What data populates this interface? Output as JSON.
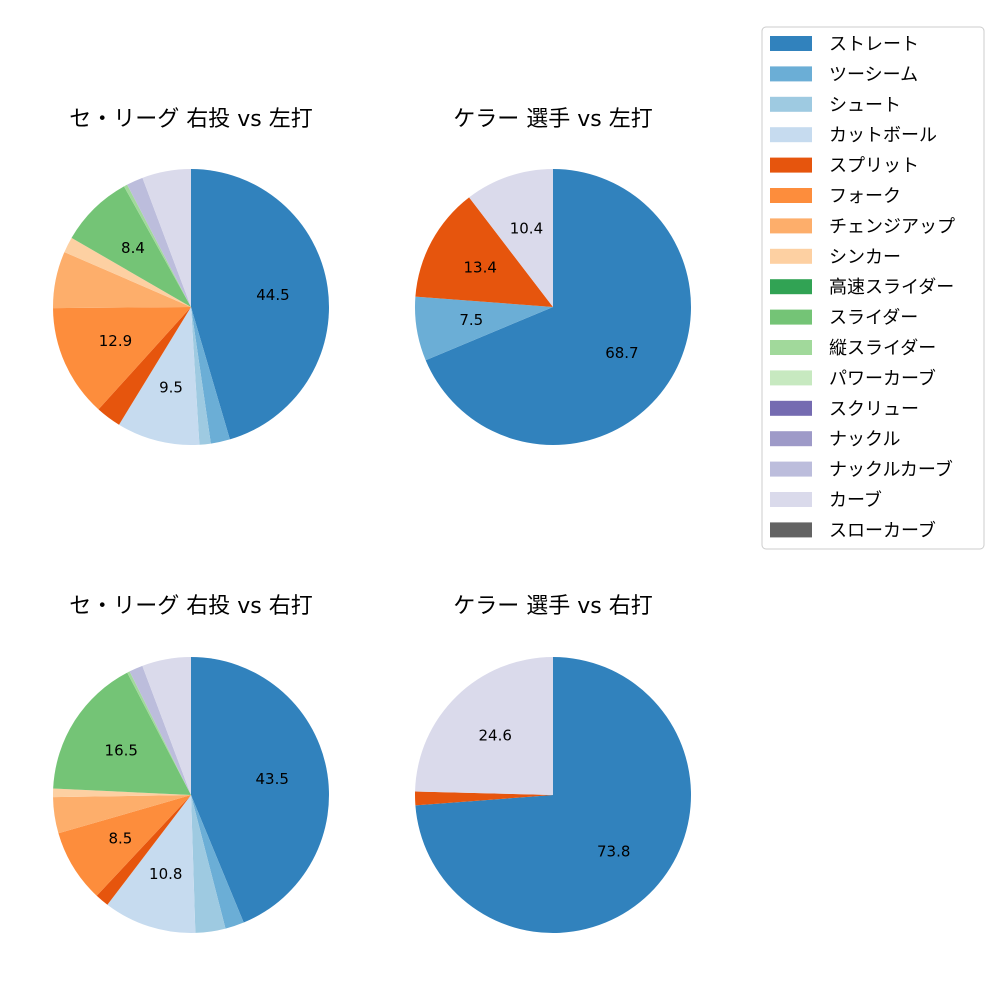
{
  "chart_data": [
    {
      "type": "pie",
      "title": "セ・リーグ 右投 vs 左打",
      "slices": [
        {
          "label": "ストレート",
          "value": 44.5,
          "color": "#3182bd",
          "shown": "44.5"
        },
        {
          "label": "ツーシーム",
          "value": 2.2,
          "color": "#6baed6",
          "shown": ""
        },
        {
          "label": "シュート",
          "value": 1.3,
          "color": "#9ecae1",
          "shown": ""
        },
        {
          "label": "カットボール",
          "value": 9.5,
          "color": "#c6dbef",
          "shown": "9.5"
        },
        {
          "label": "スプリット",
          "value": 2.9,
          "color": "#e6550d",
          "shown": ""
        },
        {
          "label": "フォーク",
          "value": 12.9,
          "color": "#fd8d3c",
          "shown": "12.9"
        },
        {
          "label": "チェンジアップ",
          "value": 6.5,
          "color": "#fdae6b",
          "shown": ""
        },
        {
          "label": "シンカー",
          "value": 1.8,
          "color": "#fdd0a2",
          "shown": ""
        },
        {
          "label": "スライダー",
          "value": 8.4,
          "color": "#74c476",
          "shown": "8.4"
        },
        {
          "label": "縦スライダー",
          "value": 0.4,
          "color": "#a1d99b",
          "shown": ""
        },
        {
          "label": "ナックルカーブ",
          "value": 1.9,
          "color": "#bcbddc",
          "shown": ""
        },
        {
          "label": "カーブ",
          "value": 5.6,
          "color": "#dadaeb",
          "shown": ""
        }
      ]
    },
    {
      "type": "pie",
      "title": "ケラー 選手 vs 左打",
      "slices": [
        {
          "label": "ストレート",
          "value": 68.7,
          "color": "#3182bd",
          "shown": "68.7"
        },
        {
          "label": "ツーシーム",
          "value": 7.5,
          "color": "#6baed6",
          "shown": "7.5"
        },
        {
          "label": "スプリット",
          "value": 13.4,
          "color": "#e6550d",
          "shown": "13.4"
        },
        {
          "label": "カーブ",
          "value": 10.4,
          "color": "#dadaeb",
          "shown": "10.4"
        }
      ]
    },
    {
      "type": "pie",
      "title": "セ・リーグ 右投 vs 右打",
      "slices": [
        {
          "label": "ストレート",
          "value": 43.5,
          "color": "#3182bd",
          "shown": "43.5"
        },
        {
          "label": "ツーシーム",
          "value": 2.2,
          "color": "#6baed6",
          "shown": ""
        },
        {
          "label": "シュート",
          "value": 3.5,
          "color": "#9ecae1",
          "shown": ""
        },
        {
          "label": "カットボール",
          "value": 10.8,
          "color": "#c6dbef",
          "shown": "10.8"
        },
        {
          "label": "スプリット",
          "value": 1.6,
          "color": "#e6550d",
          "shown": ""
        },
        {
          "label": "フォーク",
          "value": 8.5,
          "color": "#fd8d3c",
          "shown": "8.5"
        },
        {
          "label": "チェンジアップ",
          "value": 4.2,
          "color": "#fdae6b",
          "shown": ""
        },
        {
          "label": "シンカー",
          "value": 1.0,
          "color": "#fdd0a2",
          "shown": ""
        },
        {
          "label": "スライダー",
          "value": 16.5,
          "color": "#74c476",
          "shown": "16.5"
        },
        {
          "label": "縦スライダー",
          "value": 0.3,
          "color": "#a1d99b",
          "shown": ""
        },
        {
          "label": "ナックルカーブ",
          "value": 1.6,
          "color": "#bcbddc",
          "shown": ""
        },
        {
          "label": "カーブ",
          "value": 5.7,
          "color": "#dadaeb",
          "shown": ""
        }
      ]
    },
    {
      "type": "pie",
      "title": "ケラー 選手 vs 右打",
      "slices": [
        {
          "label": "ストレート",
          "value": 73.8,
          "color": "#3182bd",
          "shown": "73.8"
        },
        {
          "label": "スプリット",
          "value": 1.6,
          "color": "#e6550d",
          "shown": ""
        },
        {
          "label": "カーブ",
          "value": 24.6,
          "color": "#dadaeb",
          "shown": "24.6"
        }
      ]
    }
  ],
  "legend": {
    "placement": "top-right",
    "entries": [
      {
        "label": "ストレート",
        "color": "#3182bd"
      },
      {
        "label": "ツーシーム",
        "color": "#6baed6"
      },
      {
        "label": "シュート",
        "color": "#9ecae1"
      },
      {
        "label": "カットボール",
        "color": "#c6dbef"
      },
      {
        "label": "スプリット",
        "color": "#e6550d"
      },
      {
        "label": "フォーク",
        "color": "#fd8d3c"
      },
      {
        "label": "チェンジアップ",
        "color": "#fdae6b"
      },
      {
        "label": "シンカー",
        "color": "#fdd0a2"
      },
      {
        "label": "高速スライダー",
        "color": "#31a354"
      },
      {
        "label": "スライダー",
        "color": "#74c476"
      },
      {
        "label": "縦スライダー",
        "color": "#a1d99b"
      },
      {
        "label": "パワーカーブ",
        "color": "#c7e9c0"
      },
      {
        "label": "スクリュー",
        "color": "#756bb1"
      },
      {
        "label": "ナックル",
        "color": "#9e9ac8"
      },
      {
        "label": "ナックルカーブ",
        "color": "#bcbddc"
      },
      {
        "label": "カーブ",
        "color": "#dadaeb"
      },
      {
        "label": "スローカーブ",
        "color": "#636363"
      }
    ]
  }
}
